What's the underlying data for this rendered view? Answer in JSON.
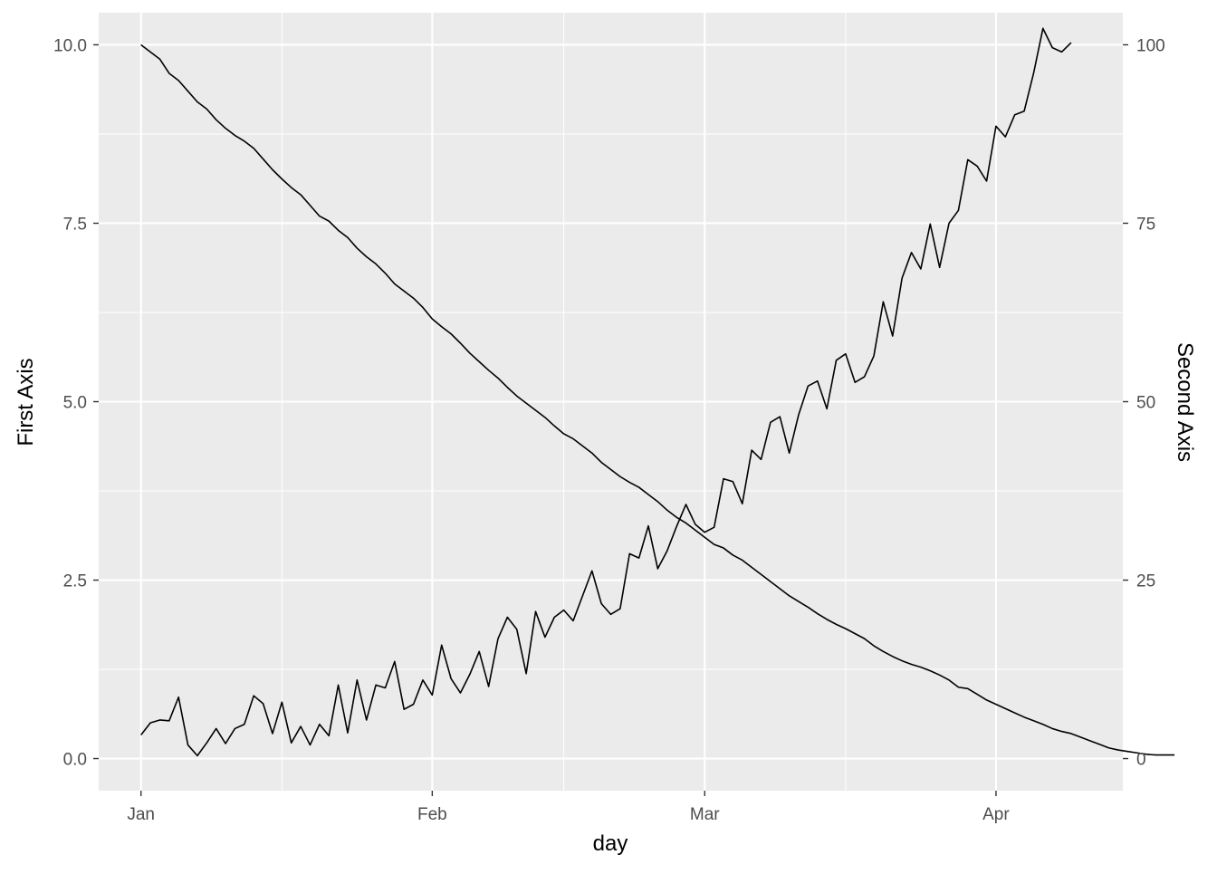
{
  "chart_data": {
    "type": "line",
    "xlabel": "day",
    "ylabel": "First Axis",
    "y2label": "Second Axis",
    "x_range": [
      "2020-01-01",
      "2020-04-10"
    ],
    "x_ticks": [
      {
        "label": "Jan",
        "date": "2020-01-01"
      },
      {
        "label": "Feb",
        "date": "2020-02-01"
      },
      {
        "label": "Mar",
        "date": "2020-03-01"
      },
      {
        "label": "Apr",
        "date": "2020-04-01"
      }
    ],
    "x_minor_ticks": [
      "2020-01-16",
      "2020-02-15",
      "2020-03-16"
    ],
    "ylim": [
      -0.45,
      10.45
    ],
    "y_ticks": [
      {
        "label": "0.0",
        "value": 0
      },
      {
        "label": "2.5",
        "value": 2.5
      },
      {
        "label": "5.0",
        "value": 5
      },
      {
        "label": "7.5",
        "value": 7.5
      },
      {
        "label": "10.0",
        "value": 10
      }
    ],
    "y_minor_ticks": [
      1.25,
      3.75,
      6.25,
      8.75
    ],
    "y2_ticks": [
      {
        "label": "0",
        "value": 0
      },
      {
        "label": "25",
        "value": 25
      },
      {
        "label": "50",
        "value": 50
      },
      {
        "label": "75",
        "value": 75
      },
      {
        "label": "100",
        "value": 100
      }
    ],
    "y2_scale": 10,
    "grid": true,
    "colors": {
      "panel": "#EBEBEB",
      "grid": "#FFFFFF",
      "line": "#000000",
      "tick_text": "#4D4D4D",
      "tick_mark": "#333333",
      "title_text": "#000000"
    },
    "series": [
      {
        "axis": "y",
        "x_start": "2020-01-01",
        "x_step_days": 1,
        "values": [
          10.0,
          9.9,
          9.8,
          9.6,
          9.5,
          9.35,
          9.2,
          9.1,
          8.95,
          8.83,
          8.73,
          8.65,
          8.55,
          8.4,
          8.25,
          8.12,
          8.0,
          7.9,
          7.75,
          7.6,
          7.53,
          7.4,
          7.3,
          7.15,
          7.03,
          6.93,
          6.8,
          6.65,
          6.55,
          6.45,
          6.32,
          6.16,
          6.05,
          5.95,
          5.82,
          5.68,
          5.56,
          5.44,
          5.33,
          5.2,
          5.08,
          4.98,
          4.88,
          4.78,
          4.66,
          4.55,
          4.48,
          4.38,
          4.28,
          4.15,
          4.05,
          3.95,
          3.87,
          3.8,
          3.7,
          3.6,
          3.48,
          3.38,
          3.3,
          3.2,
          3.1,
          3.0,
          2.95,
          2.85,
          2.78,
          2.68,
          2.58,
          2.48,
          2.38,
          2.28,
          2.2,
          2.12,
          2.03,
          1.95,
          1.88,
          1.82,
          1.75,
          1.68,
          1.58,
          1.5,
          1.43,
          1.37,
          1.32,
          1.28,
          1.23,
          1.17,
          1.1,
          1.0,
          0.98,
          0.9,
          0.82,
          0.76,
          0.7,
          0.64,
          0.58,
          0.53,
          0.48,
          0.42,
          0.38,
          0.35,
          0.3,
          0.25,
          0.2,
          0.15,
          0.12,
          0.1,
          0.08,
          0.06,
          0.05,
          0.05,
          0.05
        ]
      },
      {
        "axis": "y2",
        "x_start": "2020-01-01",
        "x_step_days": 1,
        "values": [
          3.3,
          5.0,
          5.4,
          5.3,
          8.6,
          1.9,
          0.4,
          2.2,
          4.2,
          2.1,
          4.2,
          4.8,
          8.8,
          7.7,
          3.5,
          7.9,
          2.2,
          4.5,
          1.9,
          4.8,
          3.2,
          10.3,
          3.6,
          11.0,
          5.4,
          10.3,
          9.9,
          13.6,
          6.9,
          7.6,
          11.0,
          8.9,
          15.9,
          11.2,
          9.2,
          11.8,
          15.0,
          10.1,
          16.8,
          19.8,
          18.1,
          11.9,
          20.6,
          17.0,
          19.8,
          20.8,
          19.3,
          22.8,
          26.3,
          21.7,
          20.2,
          21.0,
          28.7,
          28.1,
          32.6,
          26.6,
          29.1,
          32.5,
          35.6,
          32.8,
          31.7,
          32.4,
          39.2,
          38.8,
          35.7,
          43.2,
          41.9,
          47.1,
          47.9,
          42.8,
          48.2,
          52.2,
          52.9,
          49.0,
          55.8,
          56.7,
          52.7,
          53.5,
          56.4,
          64.0,
          59.2,
          67.3,
          70.9,
          68.6,
          74.9,
          68.8,
          75.0,
          76.8,
          83.9,
          83.0,
          80.9,
          88.6,
          87.1,
          90.2,
          90.7,
          96.0,
          102.3,
          99.6,
          99.0,
          100.3
        ]
      }
    ]
  }
}
